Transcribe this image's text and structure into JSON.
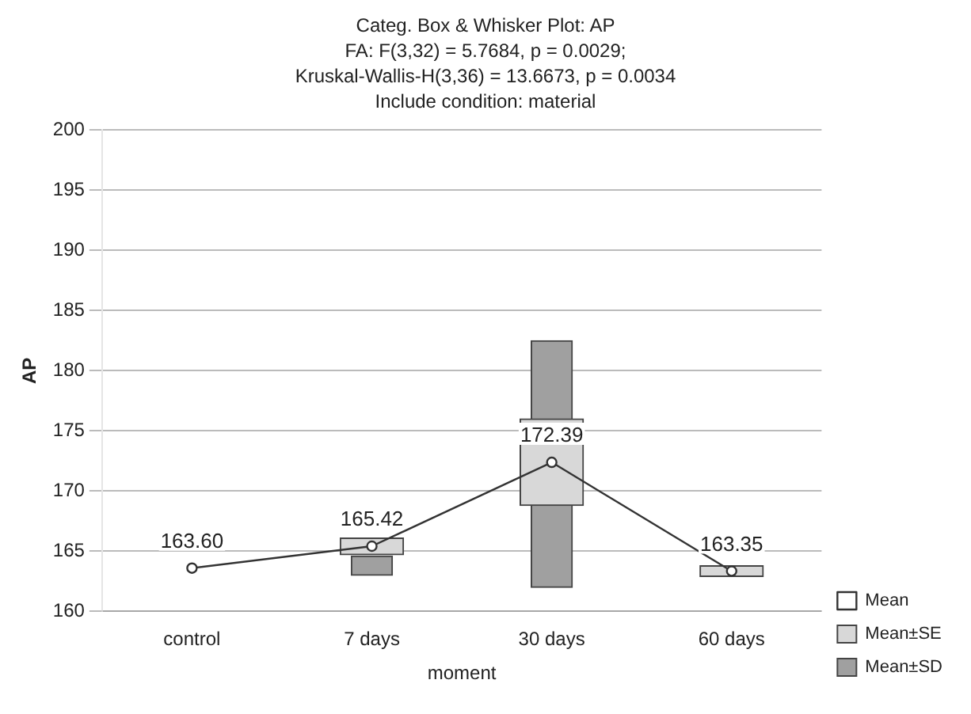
{
  "chart_data": {
    "type": "bar",
    "title": "Categ. Box & Whisker Plot: AP",
    "subtitle": "FA:  F(3,32) = 5.7684, p = 0.0029;",
    "annotations": [
      "Kruskal-Wallis-H(3,36) = 13.6673, p = 0.0034",
      "Include condition: material"
    ],
    "xlabel": "moment",
    "ylabel": "AP",
    "categories": [
      "control",
      "7 days",
      "30 days",
      "60 days"
    ],
    "ylim": [
      160,
      200
    ],
    "yticks": [
      160,
      165,
      170,
      175,
      180,
      185,
      190,
      195,
      200
    ],
    "grid": "y",
    "legend": "bottom right",
    "series": [
      {
        "type": "line",
        "name": "Mean",
        "color": "#333333",
        "marker": "circle",
        "values": [
          163.6,
          165.42,
          172.39,
          163.35
        ],
        "value_labels": [
          "163.60",
          "165.42",
          "172.39",
          "163.35"
        ]
      },
      {
        "name": "Mean±SE",
        "color": "#d8d8d8",
        "base": [
          null,
          164.7,
          168.8,
          162.9
        ],
        "values": [
          null,
          1.4,
          7.2,
          0.9
        ]
      },
      {
        "name": "Mean±SD",
        "color": "#a0a0a0",
        "base": [
          null,
          163.0,
          162.0,
          null
        ],
        "values": [
          null,
          1.6,
          20.5,
          null
        ]
      }
    ]
  }
}
